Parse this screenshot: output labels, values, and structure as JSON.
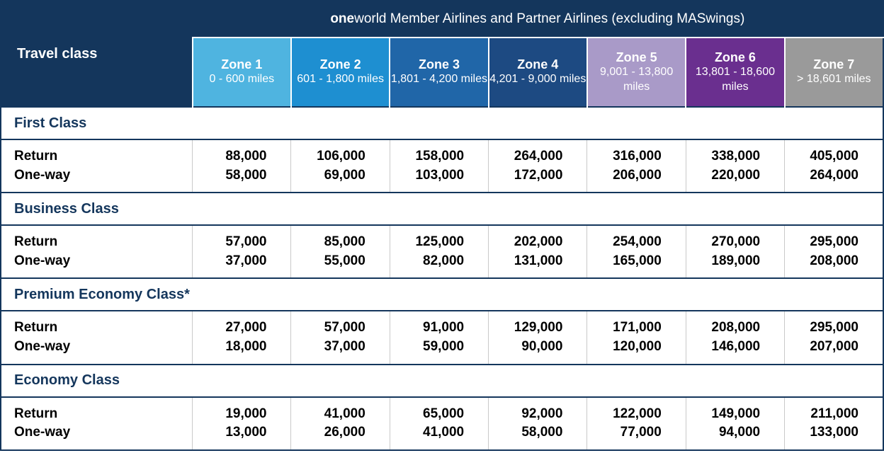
{
  "header": {
    "title_bold": "one",
    "title_light": "world Member Airlines and Partner Airlines (excluding MASwings)",
    "left_label": "Travel class"
  },
  "colors": {
    "header_bg": "#14365c",
    "header_fg": "#ffffff",
    "class_fg": "#14365c",
    "body_fg": "#000000",
    "zone_bgs": [
      "#4fb4e0",
      "#1e8fd1",
      "#2066a8",
      "#1d4a82",
      "#a99ac8",
      "#6a2f8f",
      "#9a9a9a"
    ]
  },
  "zones": [
    {
      "name": "Zone 1",
      "range": "0 - 600 miles"
    },
    {
      "name": "Zone 2",
      "range": "601 - 1,800 miles"
    },
    {
      "name": "Zone 3",
      "range": "1,801 - 4,200 miles"
    },
    {
      "name": "Zone 4",
      "range": "4,201 - 9,000 miles"
    },
    {
      "name": "Zone 5",
      "range": "9,001 - 13,800 miles"
    },
    {
      "name": "Zone 6",
      "range": "13,801 - 18,600 miles"
    },
    {
      "name": "Zone 7",
      "range": "> 18,601 miles"
    }
  ],
  "classes": [
    {
      "name": "First Class",
      "rows": [
        {
          "label": "Return",
          "values": [
            "88,000",
            "106,000",
            "158,000",
            "264,000",
            "316,000",
            "338,000",
            "405,000"
          ]
        },
        {
          "label": "One-way",
          "values": [
            "58,000",
            "69,000",
            "103,000",
            "172,000",
            "206,000",
            "220,000",
            "264,000"
          ]
        }
      ]
    },
    {
      "name": "Business Class",
      "rows": [
        {
          "label": "Return",
          "values": [
            "57,000",
            "85,000",
            "125,000",
            "202,000",
            "254,000",
            "270,000",
            "295,000"
          ]
        },
        {
          "label": "One-way",
          "values": [
            "37,000",
            "55,000",
            "82,000",
            "131,000",
            "165,000",
            "189,000",
            "208,000"
          ]
        }
      ]
    },
    {
      "name": "Premium Economy Class*",
      "rows": [
        {
          "label": "Return",
          "values": [
            "27,000",
            "57,000",
            "91,000",
            "129,000",
            "171,000",
            "208,000",
            "295,000"
          ]
        },
        {
          "label": "One-way",
          "values": [
            "18,000",
            "37,000",
            "59,000",
            "90,000",
            "120,000",
            "146,000",
            "207,000"
          ]
        }
      ]
    },
    {
      "name": "Economy Class",
      "rows": [
        {
          "label": "Return",
          "values": [
            "19,000",
            "41,000",
            "65,000",
            "92,000",
            "122,000",
            "149,000",
            "211,000"
          ]
        },
        {
          "label": "One-way",
          "values": [
            "13,000",
            "26,000",
            "41,000",
            "58,000",
            "77,000",
            "94,000",
            "133,000"
          ]
        }
      ]
    }
  ]
}
